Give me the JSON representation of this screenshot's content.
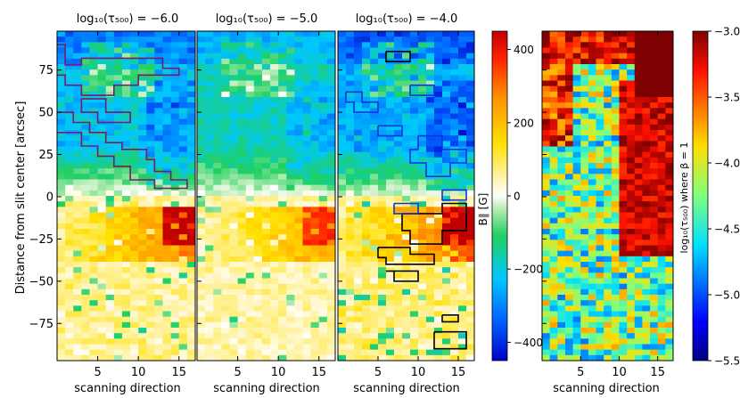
{
  "chart_data": [
    {
      "type": "heatmap",
      "panels": [
        {
          "title": "log₁₀(τ₅₀₀) = −6.0",
          "contour": "purple"
        },
        {
          "title": "log₁₀(τ₅₀₀) = −5.0",
          "contour": "none"
        },
        {
          "title": "log₁₀(τ₅₀₀) = −4.0",
          "contour": "black/blue"
        }
      ],
      "xlabel": "scanning direction",
      "ylabel": "Distance from slit center [arcsec]",
      "xlim": [
        0,
        17
      ],
      "ylim": [
        -97,
        98
      ],
      "x_ticks": [
        5,
        10,
        15
      ],
      "y_ticks": [
        75,
        50,
        25,
        0,
        -25,
        -50,
        -75
      ],
      "colorbar": {
        "label": "B∥ [G]",
        "range": [
          -450,
          450
        ],
        "ticks": [
          400,
          200,
          0,
          -200,
          -400
        ],
        "colormap": "jet-with-white-center"
      }
    },
    {
      "type": "heatmap",
      "xlabel": "scanning direction",
      "xlim": [
        0,
        17
      ],
      "ylim": [
        -97,
        98
      ],
      "x_ticks": [
        5,
        10,
        15
      ],
      "colorbar": {
        "label": "log₁₀(τ₅₀₀) where β = 1",
        "range": [
          -5.5,
          -3.0
        ],
        "ticks": [
          -3.0,
          -3.5,
          -4.0,
          -4.5,
          -5.0,
          -5.5
        ],
        "colormap": "jet"
      }
    }
  ],
  "colors": {
    "contour_purple": "#7a1a6a",
    "contour_black": "#000000",
    "contour_blue": "#1030e0"
  }
}
